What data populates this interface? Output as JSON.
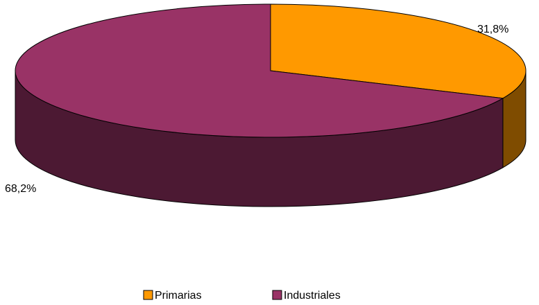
{
  "chart_data": {
    "type": "pie",
    "style": "3d-exploded-perspective",
    "title": "",
    "slices": [
      {
        "name": "Primarias",
        "value": 31.8,
        "label": "31,8%",
        "color": "#FF9900",
        "side_color": "#7F4C00"
      },
      {
        "name": "Industriales",
        "value": 68.2,
        "label": "68,2%",
        "color": "#993366",
        "side_color": "#4C1933"
      }
    ],
    "legend": {
      "position": "bottom",
      "items": [
        "Primarias",
        "Industriales"
      ]
    }
  }
}
